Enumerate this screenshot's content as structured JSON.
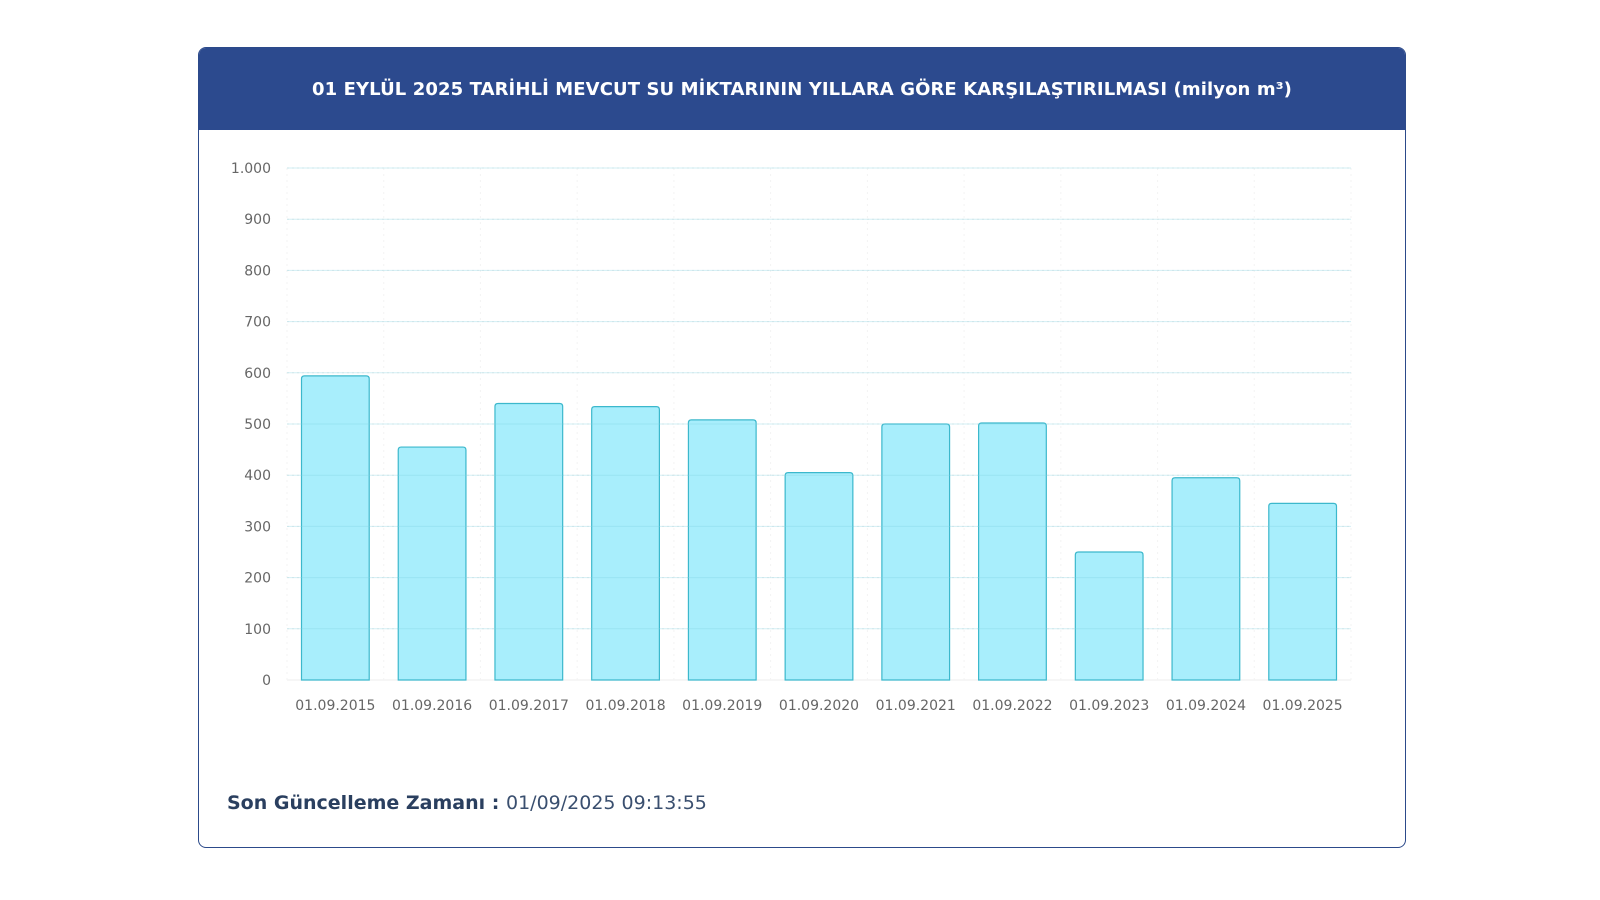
{
  "header": {
    "title": "01 EYLÜL 2025 TARİHLİ MEVCUT SU MİKTARININ YILLARA GÖRE KARŞILAŞTIRILMASI (milyon m³)"
  },
  "footer": {
    "label": "Son Güncelleme Zamanı",
    "separator": " : ",
    "value": "01/09/2025 09:13:55"
  },
  "colors": {
    "header_bg": "#2c4a8e",
    "bar_fill": "#a8eefc",
    "bar_stroke": "#3cb8cc",
    "grid": "#eeeeee",
    "tick_text": "#666666"
  },
  "chart_data": {
    "type": "bar",
    "categories": [
      "01.09.2015",
      "01.09.2016",
      "01.09.2017",
      "01.09.2018",
      "01.09.2019",
      "01.09.2020",
      "01.09.2021",
      "01.09.2022",
      "01.09.2023",
      "01.09.2024",
      "01.09.2025"
    ],
    "values": [
      594,
      455,
      540,
      534,
      508,
      405,
      500,
      502,
      250,
      395,
      345
    ],
    "ylim": [
      0,
      1000
    ],
    "yticks": [
      0,
      100,
      200,
      300,
      400,
      500,
      600,
      700,
      800,
      900,
      1000
    ],
    "ytick_labels": [
      "0",
      "100",
      "200",
      "300",
      "400",
      "500",
      "600",
      "700",
      "800",
      "900",
      "1.000"
    ],
    "grid": true,
    "legend": false
  }
}
